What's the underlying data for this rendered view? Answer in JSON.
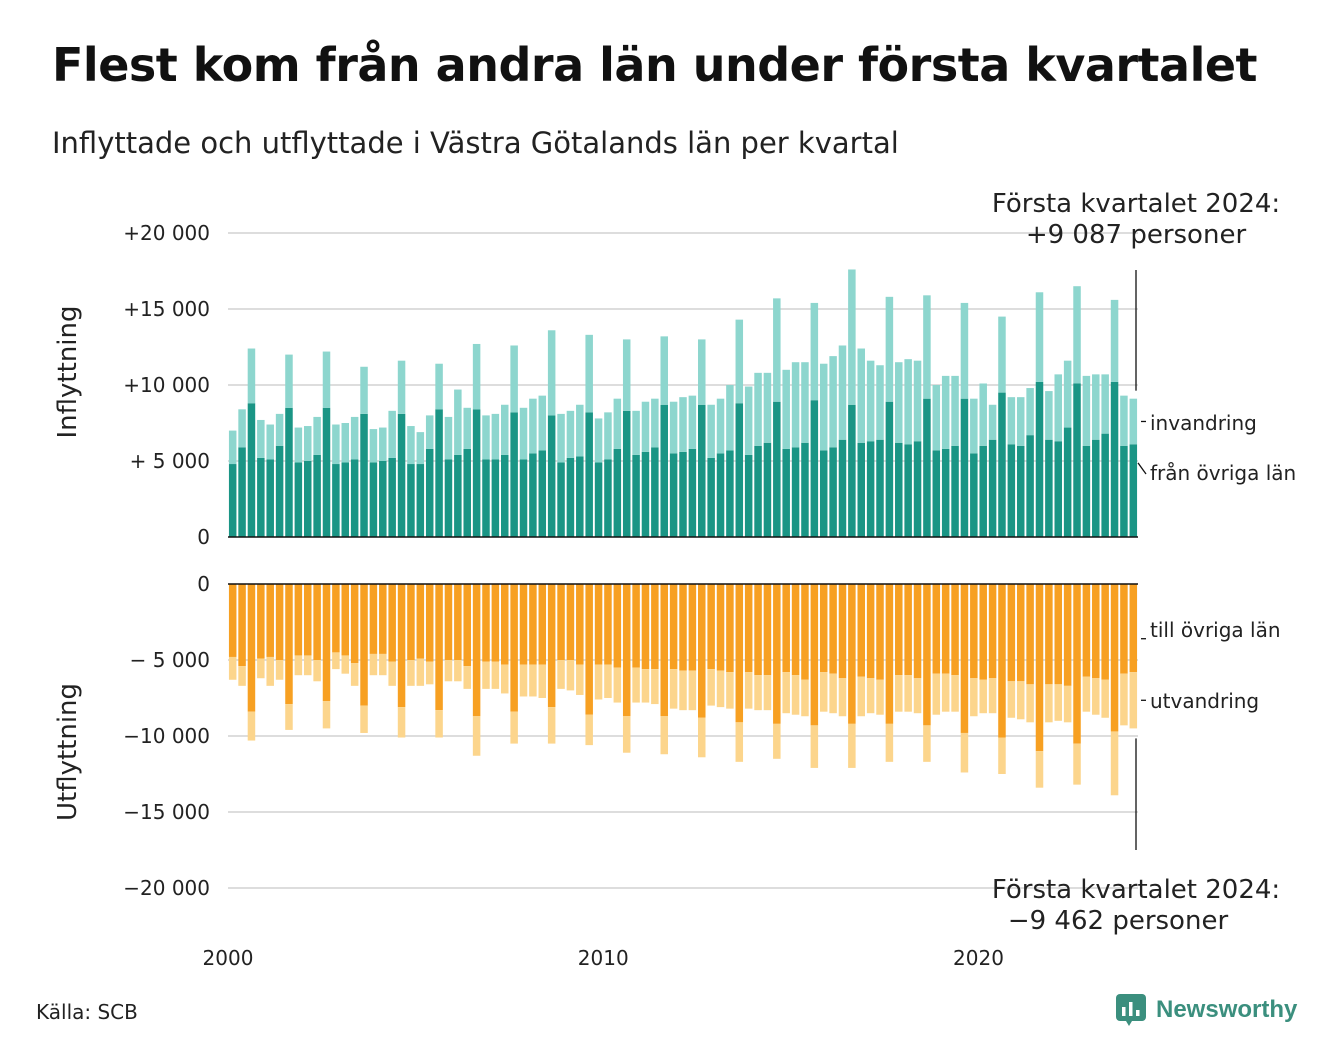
{
  "title": "Flest kom från andra län under första kvartalet",
  "subtitle": "Inflyttade och utflyttade i Västra Götalands län per kvartal",
  "source": "Källa: SCB",
  "logo": {
    "text": "Newsworthy",
    "icon": "newsworthy-chart-icon",
    "color": "#3b8f7e"
  },
  "colors": {
    "from_other_counties": "#1a9585",
    "immigration": "#8dd6ce",
    "to_other_counties": "#f7a022",
    "emigration": "#fcd58c"
  },
  "chart_data": [
    {
      "type": "bar",
      "stacked": true,
      "ylabel": "Inflyttning",
      "ylim": [
        0,
        20000
      ],
      "yticks": [
        {
          "value": 20000,
          "label": "+20 000"
        },
        {
          "value": 15000,
          "label": "+15 000"
        },
        {
          "value": 10000,
          "label": "+10 000"
        },
        {
          "value": 5000,
          "label": "+ 5 000"
        },
        {
          "value": 0,
          "label": "0"
        }
      ],
      "grid": true,
      "annotation": {
        "line1": "Första kvartalet 2024:",
        "line2": "+9 087 personer"
      },
      "x_start": "2000 Q1",
      "x_end": "2024 Q1",
      "series": [
        {
          "name": "från övriga län",
          "values": [
            4800,
            5900,
            8800,
            5200,
            5100,
            6000,
            8500,
            4900,
            5000,
            5400,
            8500,
            4800,
            4900,
            5100,
            8100,
            4900,
            5000,
            5200,
            8100,
            4800,
            4800,
            5800,
            8400,
            5100,
            5400,
            5800,
            8400,
            5100,
            5100,
            5400,
            8200,
            5100,
            5500,
            5700,
            8000,
            4900,
            5200,
            5300,
            8200,
            4900,
            5100,
            5800,
            8300,
            5400,
            5600,
            5900,
            8700,
            5500,
            5600,
            5800,
            8700,
            5200,
            5500,
            5700,
            8800,
            5400,
            6000,
            6200,
            8900,
            5800,
            5900,
            6200,
            9000,
            5700,
            5900,
            6400,
            8700,
            6200,
            6300,
            6400,
            8900,
            6200,
            6100,
            6300,
            9100,
            5700,
            5800,
            6000,
            9100,
            5500,
            6000,
            6400,
            9500,
            6100,
            6000,
            6700,
            10200,
            6400,
            6300,
            7200,
            10100,
            6000,
            6400,
            6800,
            10200,
            6000,
            6100
          ]
        },
        {
          "name": "invandring",
          "values": [
            2200,
            2500,
            3600,
            2500,
            2300,
            2100,
            3500,
            2300,
            2300,
            2500,
            3700,
            2600,
            2600,
            2800,
            3100,
            2200,
            2200,
            3100,
            3500,
            2500,
            2100,
            2200,
            3000,
            2800,
            4300,
            2700,
            4300,
            2900,
            3000,
            3300,
            4400,
            3400,
            3600,
            3600,
            5600,
            3200,
            3100,
            3400,
            5100,
            2900,
            3100,
            3300,
            4700,
            2900,
            3300,
            3200,
            4500,
            3400,
            3600,
            3500,
            4300,
            3500,
            3600,
            4300,
            5500,
            4500,
            4800,
            4600,
            6800,
            5200,
            5600,
            5300,
            6400,
            5700,
            6000,
            6200,
            8900,
            6200,
            5300,
            4900,
            6900,
            5300,
            5600,
            5300,
            6800,
            4300,
            4800,
            4600,
            6300,
            3600,
            4100,
            2300,
            5000,
            3100,
            3200,
            3100,
            5900,
            3200,
            4400,
            4400,
            6400,
            4600,
            4300,
            3900,
            5400,
            3300,
            3000
          ]
        }
      ]
    },
    {
      "type": "bar",
      "stacked": true,
      "ylabel": "Utflyttning",
      "ylim": [
        -20000,
        0
      ],
      "yticks": [
        {
          "value": 0,
          "label": "0"
        },
        {
          "value": -5000,
          "label": "− 5 000"
        },
        {
          "value": -10000,
          "label": "−10 000"
        },
        {
          "value": -15000,
          "label": "−15 000"
        },
        {
          "value": -20000,
          "label": "−20 000"
        }
      ],
      "grid": true,
      "annotation": {
        "line1": "Första kvartalet 2024:",
        "line2": "−9 462 personer"
      },
      "xticks": [
        {
          "value": "2000",
          "label": "2000"
        },
        {
          "value": "2010",
          "label": "2010"
        },
        {
          "value": "2020",
          "label": "2020"
        }
      ],
      "series": [
        {
          "name": "till övriga län",
          "values": [
            -4800,
            -5400,
            -8400,
            -4900,
            -4800,
            -5000,
            -7900,
            -4700,
            -4700,
            -5000,
            -7700,
            -4500,
            -4700,
            -5200,
            -8000,
            -4600,
            -4600,
            -5100,
            -8100,
            -5000,
            -4900,
            -5100,
            -8300,
            -5000,
            -5000,
            -5400,
            -8700,
            -5100,
            -5100,
            -5300,
            -8400,
            -5300,
            -5300,
            -5300,
            -8100,
            -5000,
            -5000,
            -5300,
            -8600,
            -5300,
            -5300,
            -5500,
            -8700,
            -5500,
            -5600,
            -5600,
            -8700,
            -5600,
            -5700,
            -5700,
            -8800,
            -5600,
            -5700,
            -5800,
            -9100,
            -5800,
            -6000,
            -6000,
            -9200,
            -5800,
            -6000,
            -6300,
            -9300,
            -5800,
            -5900,
            -6200,
            -9200,
            -6100,
            -6200,
            -6300,
            -9200,
            -6000,
            -6000,
            -6200,
            -9300,
            -5900,
            -5900,
            -6000,
            -9800,
            -6200,
            -6300,
            -6200,
            -10100,
            -6400,
            -6400,
            -6600,
            -11000,
            -6600,
            -6600,
            -6700,
            -10500,
            -6100,
            -6200,
            -6300,
            -9700,
            -5900,
            -5800
          ]
        },
        {
          "name": "utvandring",
          "values": [
            -1500,
            -1300,
            -1900,
            -1300,
            -1900,
            -1300,
            -1700,
            -1300,
            -1300,
            -1400,
            -1800,
            -1100,
            -1200,
            -1500,
            -1800,
            -1400,
            -1400,
            -1600,
            -2000,
            -1700,
            -1800,
            -1500,
            -1800,
            -1400,
            -1400,
            -1500,
            -2600,
            -1800,
            -1800,
            -1900,
            -2100,
            -2100,
            -2100,
            -2200,
            -2400,
            -1900,
            -2000,
            -2000,
            -2000,
            -2300,
            -2200,
            -2300,
            -2400,
            -2300,
            -2200,
            -2300,
            -2500,
            -2600,
            -2600,
            -2600,
            -2600,
            -2400,
            -2400,
            -2400,
            -2600,
            -2400,
            -2300,
            -2300,
            -2300,
            -2700,
            -2600,
            -2400,
            -2800,
            -2600,
            -2600,
            -2500,
            -2900,
            -2600,
            -2300,
            -2300,
            -2500,
            -2400,
            -2400,
            -2300,
            -2400,
            -2700,
            -2500,
            -2400,
            -2600,
            -2500,
            -2200,
            -2300,
            -2400,
            -2400,
            -2500,
            -2500,
            -2400,
            -2500,
            -2400,
            -2400,
            -2700,
            -2300,
            -2400,
            -2500,
            -4200,
            -3400,
            -3700
          ]
        }
      ]
    }
  ]
}
